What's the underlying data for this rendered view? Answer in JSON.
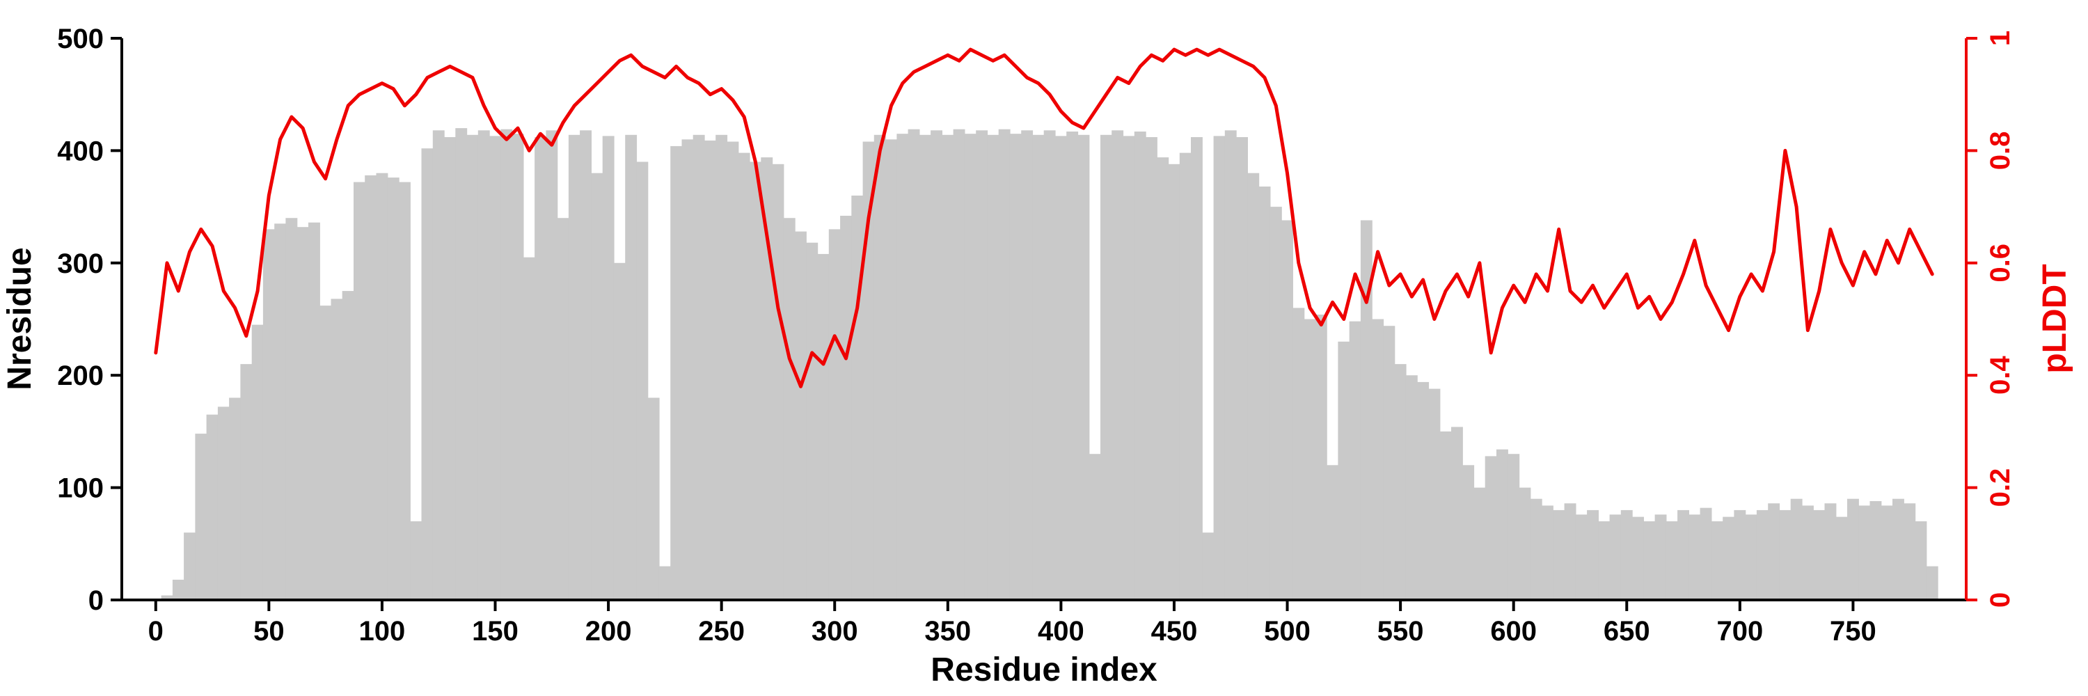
{
  "chart_data": {
    "type": "bar+line",
    "xlabel": "Residue index",
    "ylabel_left": "Nresidue",
    "ylabel_right": "pLDDT",
    "xlim": [
      -15,
      800
    ],
    "ylim_left": [
      0,
      500
    ],
    "ylim_right": [
      0,
      1
    ],
    "xticks": [
      0,
      50,
      100,
      150,
      200,
      250,
      300,
      350,
      400,
      450,
      500,
      550,
      600,
      650,
      700,
      750
    ],
    "yticks_left": [
      0,
      100,
      200,
      300,
      400,
      500
    ],
    "yticks_right": [
      0,
      0.2,
      0.4,
      0.6,
      0.8,
      1
    ],
    "grid": false,
    "legend": "none",
    "colors": {
      "bars": "#c9c9c9",
      "line": "#ee0000",
      "axis_left": "#000000",
      "axis_bottom": "#000000",
      "axis_right": "#ee0000"
    },
    "x": [
      0,
      5,
      10,
      15,
      20,
      25,
      30,
      35,
      40,
      45,
      50,
      55,
      60,
      65,
      70,
      75,
      80,
      85,
      90,
      95,
      100,
      105,
      110,
      115,
      120,
      125,
      130,
      135,
      140,
      145,
      150,
      155,
      160,
      165,
      170,
      175,
      180,
      185,
      190,
      195,
      200,
      205,
      210,
      215,
      220,
      225,
      230,
      235,
      240,
      245,
      250,
      255,
      260,
      265,
      270,
      275,
      280,
      285,
      290,
      295,
      300,
      305,
      310,
      315,
      320,
      325,
      330,
      335,
      340,
      345,
      350,
      355,
      360,
      365,
      370,
      375,
      380,
      385,
      390,
      395,
      400,
      405,
      410,
      415,
      420,
      425,
      430,
      435,
      440,
      445,
      450,
      455,
      460,
      465,
      470,
      475,
      480,
      485,
      490,
      495,
      500,
      505,
      510,
      515,
      520,
      525,
      530,
      535,
      540,
      545,
      550,
      555,
      560,
      565,
      570,
      575,
      580,
      585,
      590,
      595,
      600,
      605,
      610,
      615,
      620,
      625,
      630,
      635,
      640,
      645,
      650,
      655,
      660,
      665,
      670,
      675,
      680,
      685,
      690,
      695,
      700,
      705,
      710,
      715,
      720,
      725,
      730,
      735,
      740,
      745,
      750,
      755,
      760,
      765,
      770,
      775,
      780,
      785
    ],
    "series": [
      {
        "name": "Nresidue",
        "type": "bar",
        "axis": "left",
        "color": "#c9c9c9",
        "values": [
          0,
          4,
          18,
          60,
          148,
          165,
          172,
          180,
          210,
          245,
          330,
          335,
          340,
          332,
          336,
          262,
          268,
          275,
          372,
          378,
          380,
          376,
          372,
          70,
          402,
          418,
          412,
          420,
          414,
          418,
          413,
          419,
          415,
          305,
          412,
          418,
          340,
          414,
          418,
          380,
          413,
          300,
          414,
          390,
          180,
          30,
          404,
          410,
          414,
          409,
          414,
          408,
          398,
          390,
          394,
          388,
          340,
          328,
          318,
          308,
          330,
          342,
          360,
          408,
          414,
          410,
          415,
          419,
          414,
          418,
          414,
          419,
          415,
          418,
          414,
          419,
          415,
          418,
          414,
          418,
          413,
          417,
          414,
          130,
          414,
          418,
          413,
          417,
          412,
          394,
          388,
          398,
          412,
          60,
          413,
          418,
          412,
          380,
          368,
          350,
          338,
          260,
          250,
          254,
          120,
          230,
          248,
          338,
          250,
          244,
          210,
          200,
          194,
          188,
          150,
          154,
          120,
          100,
          128,
          134,
          130,
          100,
          90,
          84,
          80,
          86,
          76,
          80,
          70,
          76,
          80,
          74,
          70,
          76,
          70,
          80,
          76,
          82,
          70,
          74,
          80,
          76,
          80,
          86,
          80,
          90,
          84,
          80,
          86,
          74,
          90,
          84,
          88,
          84,
          90,
          86,
          70,
          30
        ]
      },
      {
        "name": "pLDDT",
        "type": "line",
        "axis": "right",
        "color": "#ee0000",
        "values": [
          0.44,
          0.6,
          0.55,
          0.62,
          0.66,
          0.63,
          0.55,
          0.52,
          0.47,
          0.55,
          0.72,
          0.82,
          0.86,
          0.84,
          0.78,
          0.75,
          0.82,
          0.88,
          0.9,
          0.91,
          0.92,
          0.91,
          0.88,
          0.9,
          0.93,
          0.94,
          0.95,
          0.94,
          0.93,
          0.88,
          0.84,
          0.82,
          0.84,
          0.8,
          0.83,
          0.81,
          0.85,
          0.88,
          0.9,
          0.92,
          0.94,
          0.96,
          0.97,
          0.95,
          0.94,
          0.93,
          0.95,
          0.93,
          0.92,
          0.9,
          0.91,
          0.89,
          0.86,
          0.78,
          0.65,
          0.52,
          0.43,
          0.38,
          0.44,
          0.42,
          0.47,
          0.43,
          0.52,
          0.68,
          0.8,
          0.88,
          0.92,
          0.94,
          0.95,
          0.96,
          0.97,
          0.96,
          0.98,
          0.97,
          0.96,
          0.97,
          0.95,
          0.93,
          0.92,
          0.9,
          0.87,
          0.85,
          0.84,
          0.87,
          0.9,
          0.93,
          0.92,
          0.95,
          0.97,
          0.96,
          0.98,
          0.97,
          0.98,
          0.97,
          0.98,
          0.97,
          0.96,
          0.95,
          0.93,
          0.88,
          0.76,
          0.6,
          0.52,
          0.49,
          0.53,
          0.5,
          0.58,
          0.53,
          0.62,
          0.56,
          0.58,
          0.54,
          0.57,
          0.5,
          0.55,
          0.58,
          0.54,
          0.6,
          0.44,
          0.52,
          0.56,
          0.53,
          0.58,
          0.55,
          0.66,
          0.55,
          0.53,
          0.56,
          0.52,
          0.55,
          0.58,
          0.52,
          0.54,
          0.5,
          0.53,
          0.58,
          0.64,
          0.56,
          0.52,
          0.48,
          0.54,
          0.58,
          0.55,
          0.62,
          0.8,
          0.7,
          0.48,
          0.55,
          0.66,
          0.6,
          0.56,
          0.62,
          0.58,
          0.64,
          0.6,
          0.66,
          0.62,
          0.58
        ]
      }
    ]
  }
}
